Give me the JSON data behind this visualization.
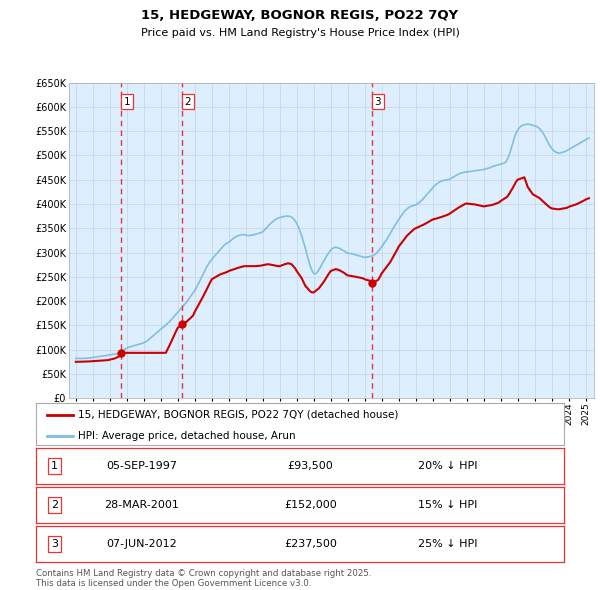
{
  "title": "15, HEDGEWAY, BOGNOR REGIS, PO22 7QY",
  "subtitle": "Price paid vs. HM Land Registry's House Price Index (HPI)",
  "legend_label_red": "15, HEDGEWAY, BOGNOR REGIS, PO22 7QY (detached house)",
  "legend_label_blue": "HPI: Average price, detached house, Arun",
  "footer1": "Contains HM Land Registry data © Crown copyright and database right 2025.",
  "footer2": "This data is licensed under the Open Government Licence v3.0.",
  "transactions": [
    {
      "label": "1",
      "date_num": 1997.67,
      "price": 93500,
      "hpi_pct": "20% ↓ HPI",
      "date_str": "05-SEP-1997"
    },
    {
      "label": "2",
      "date_num": 2001.24,
      "price": 152000,
      "hpi_pct": "15% ↓ HPI",
      "date_str": "28-MAR-2001"
    },
    {
      "label": "3",
      "date_num": 2012.43,
      "price": 237500,
      "hpi_pct": "25% ↓ HPI",
      "date_str": "07-JUN-2012"
    }
  ],
  "hpi_color": "#7fbfdf",
  "price_color": "#cc0000",
  "vline_color": "#ee3333",
  "grid_color": "#c8d8e8",
  "bg_color": "#ffffff",
  "plot_bg_color": "#ddeeff",
  "ylim": [
    0,
    650000
  ],
  "xlim_left": 1994.6,
  "xlim_right": 2025.5,
  "ytick_step": 50000,
  "hpi_data": [
    [
      1995.0,
      82000
    ],
    [
      1995.1,
      82200
    ],
    [
      1995.2,
      82100
    ],
    [
      1995.3,
      81900
    ],
    [
      1995.4,
      82000
    ],
    [
      1995.5,
      82300
    ],
    [
      1995.6,
      82500
    ],
    [
      1995.7,
      82700
    ],
    [
      1995.8,
      83000
    ],
    [
      1995.9,
      83200
    ],
    [
      1996.0,
      84000
    ],
    [
      1996.1,
      84500
    ],
    [
      1996.2,
      85000
    ],
    [
      1996.3,
      85500
    ],
    [
      1996.4,
      86000
    ],
    [
      1996.5,
      86500
    ],
    [
      1996.6,
      87000
    ],
    [
      1996.7,
      87500
    ],
    [
      1996.8,
      88000
    ],
    [
      1996.9,
      88500
    ],
    [
      1997.0,
      89500
    ],
    [
      1997.1,
      90000
    ],
    [
      1997.2,
      90500
    ],
    [
      1997.3,
      91000
    ],
    [
      1997.4,
      91500
    ],
    [
      1997.5,
      93000
    ],
    [
      1997.6,
      95000
    ],
    [
      1997.7,
      97000
    ],
    [
      1997.8,
      99000
    ],
    [
      1997.9,
      101000
    ],
    [
      1998.0,
      103000
    ],
    [
      1998.1,
      105000
    ],
    [
      1998.2,
      106000
    ],
    [
      1998.3,
      107000
    ],
    [
      1998.4,
      108000
    ],
    [
      1998.5,
      109000
    ],
    [
      1998.6,
      110000
    ],
    [
      1998.7,
      111000
    ],
    [
      1998.8,
      112000
    ],
    [
      1998.9,
      113000
    ],
    [
      1999.0,
      114000
    ],
    [
      1999.1,
      116000
    ],
    [
      1999.2,
      118000
    ],
    [
      1999.3,
      121000
    ],
    [
      1999.4,
      124000
    ],
    [
      1999.5,
      127000
    ],
    [
      1999.6,
      130000
    ],
    [
      1999.7,
      133000
    ],
    [
      1999.8,
      136000
    ],
    [
      1999.9,
      139000
    ],
    [
      2000.0,
      142000
    ],
    [
      2000.1,
      145000
    ],
    [
      2000.2,
      148000
    ],
    [
      2000.3,
      151000
    ],
    [
      2000.4,
      154000
    ],
    [
      2000.5,
      157000
    ],
    [
      2000.6,
      161000
    ],
    [
      2000.7,
      165000
    ],
    [
      2000.8,
      169000
    ],
    [
      2000.9,
      173000
    ],
    [
      2001.0,
      177000
    ],
    [
      2001.1,
      181000
    ],
    [
      2001.2,
      185000
    ],
    [
      2001.3,
      189000
    ],
    [
      2001.4,
      193000
    ],
    [
      2001.5,
      197000
    ],
    [
      2001.6,
      202000
    ],
    [
      2001.7,
      207000
    ],
    [
      2001.8,
      212000
    ],
    [
      2001.9,
      217000
    ],
    [
      2002.0,
      222000
    ],
    [
      2002.1,
      228000
    ],
    [
      2002.2,
      235000
    ],
    [
      2002.3,
      242000
    ],
    [
      2002.4,
      249000
    ],
    [
      2002.5,
      256000
    ],
    [
      2002.6,
      263000
    ],
    [
      2002.7,
      270000
    ],
    [
      2002.8,
      276000
    ],
    [
      2002.9,
      281000
    ],
    [
      2003.0,
      286000
    ],
    [
      2003.1,
      290000
    ],
    [
      2003.2,
      294000
    ],
    [
      2003.3,
      298000
    ],
    [
      2003.4,
      302000
    ],
    [
      2003.5,
      306000
    ],
    [
      2003.6,
      310000
    ],
    [
      2003.7,
      314000
    ],
    [
      2003.8,
      317000
    ],
    [
      2003.9,
      319000
    ],
    [
      2004.0,
      321000
    ],
    [
      2004.1,
      324000
    ],
    [
      2004.2,
      327000
    ],
    [
      2004.3,
      330000
    ],
    [
      2004.4,
      332000
    ],
    [
      2004.5,
      334000
    ],
    [
      2004.6,
      335000
    ],
    [
      2004.7,
      336000
    ],
    [
      2004.8,
      337000
    ],
    [
      2004.9,
      337000
    ],
    [
      2005.0,
      336000
    ],
    [
      2005.1,
      335000
    ],
    [
      2005.2,
      335000
    ],
    [
      2005.3,
      335500
    ],
    [
      2005.4,
      336000
    ],
    [
      2005.5,
      337000
    ],
    [
      2005.6,
      338000
    ],
    [
      2005.7,
      339000
    ],
    [
      2005.8,
      340000
    ],
    [
      2005.9,
      341000
    ],
    [
      2006.0,
      343000
    ],
    [
      2006.1,
      346000
    ],
    [
      2006.2,
      350000
    ],
    [
      2006.3,
      354000
    ],
    [
      2006.4,
      358000
    ],
    [
      2006.5,
      361000
    ],
    [
      2006.6,
      364000
    ],
    [
      2006.7,
      367000
    ],
    [
      2006.8,
      369000
    ],
    [
      2006.9,
      371000
    ],
    [
      2007.0,
      372000
    ],
    [
      2007.1,
      373000
    ],
    [
      2007.2,
      374000
    ],
    [
      2007.3,
      374500
    ],
    [
      2007.4,
      375000
    ],
    [
      2007.5,
      375000
    ],
    [
      2007.6,
      374500
    ],
    [
      2007.7,
      373000
    ],
    [
      2007.8,
      370000
    ],
    [
      2007.9,
      366000
    ],
    [
      2008.0,
      360000
    ],
    [
      2008.1,
      353000
    ],
    [
      2008.2,
      344000
    ],
    [
      2008.3,
      334000
    ],
    [
      2008.4,
      322000
    ],
    [
      2008.5,
      310000
    ],
    [
      2008.6,
      297000
    ],
    [
      2008.7,
      284000
    ],
    [
      2008.8,
      272000
    ],
    [
      2008.9,
      263000
    ],
    [
      2009.0,
      257000
    ],
    [
      2009.1,
      256000
    ],
    [
      2009.2,
      259000
    ],
    [
      2009.3,
      264000
    ],
    [
      2009.4,
      270000
    ],
    [
      2009.5,
      277000
    ],
    [
      2009.6,
      283000
    ],
    [
      2009.7,
      289000
    ],
    [
      2009.8,
      295000
    ],
    [
      2009.9,
      300000
    ],
    [
      2010.0,
      305000
    ],
    [
      2010.1,
      308000
    ],
    [
      2010.2,
      310000
    ],
    [
      2010.3,
      311000
    ],
    [
      2010.4,
      310000
    ],
    [
      2010.5,
      309000
    ],
    [
      2010.6,
      307000
    ],
    [
      2010.7,
      305000
    ],
    [
      2010.8,
      303000
    ],
    [
      2010.9,
      301000
    ],
    [
      2011.0,
      299000
    ],
    [
      2011.1,
      298000
    ],
    [
      2011.2,
      298000
    ],
    [
      2011.3,
      297000
    ],
    [
      2011.4,
      296000
    ],
    [
      2011.5,
      295000
    ],
    [
      2011.6,
      294000
    ],
    [
      2011.7,
      293000
    ],
    [
      2011.8,
      292000
    ],
    [
      2011.9,
      291000
    ],
    [
      2012.0,
      290000
    ],
    [
      2012.1,
      290500
    ],
    [
      2012.2,
      291000
    ],
    [
      2012.3,
      292000
    ],
    [
      2012.4,
      293000
    ],
    [
      2012.5,
      294000
    ],
    [
      2012.6,
      296000
    ],
    [
      2012.7,
      299000
    ],
    [
      2012.8,
      303000
    ],
    [
      2012.9,
      307000
    ],
    [
      2013.0,
      312000
    ],
    [
      2013.1,
      317000
    ],
    [
      2013.2,
      322000
    ],
    [
      2013.3,
      327000
    ],
    [
      2013.4,
      333000
    ],
    [
      2013.5,
      339000
    ],
    [
      2013.6,
      345000
    ],
    [
      2013.7,
      351000
    ],
    [
      2013.8,
      357000
    ],
    [
      2013.9,
      362000
    ],
    [
      2014.0,
      368000
    ],
    [
      2014.1,
      373000
    ],
    [
      2014.2,
      378000
    ],
    [
      2014.3,
      383000
    ],
    [
      2014.4,
      387000
    ],
    [
      2014.5,
      390000
    ],
    [
      2014.6,
      393000
    ],
    [
      2014.7,
      395000
    ],
    [
      2014.8,
      396000
    ],
    [
      2014.9,
      397000
    ],
    [
      2015.0,
      398000
    ],
    [
      2015.1,
      400000
    ],
    [
      2015.2,
      403000
    ],
    [
      2015.3,
      406000
    ],
    [
      2015.4,
      409000
    ],
    [
      2015.5,
      413000
    ],
    [
      2015.6,
      417000
    ],
    [
      2015.7,
      421000
    ],
    [
      2015.8,
      425000
    ],
    [
      2015.9,
      429000
    ],
    [
      2016.0,
      433000
    ],
    [
      2016.1,
      437000
    ],
    [
      2016.2,
      440000
    ],
    [
      2016.3,
      443000
    ],
    [
      2016.4,
      445000
    ],
    [
      2016.5,
      447000
    ],
    [
      2016.6,
      448000
    ],
    [
      2016.7,
      449000
    ],
    [
      2016.8,
      449500
    ],
    [
      2016.9,
      450000
    ],
    [
      2017.0,
      451000
    ],
    [
      2017.1,
      453000
    ],
    [
      2017.2,
      455000
    ],
    [
      2017.3,
      457000
    ],
    [
      2017.4,
      459000
    ],
    [
      2017.5,
      461000
    ],
    [
      2017.6,
      463000
    ],
    [
      2017.7,
      464000
    ],
    [
      2017.8,
      465000
    ],
    [
      2017.9,
      465500
    ],
    [
      2018.0,
      466000
    ],
    [
      2018.1,
      466500
    ],
    [
      2018.2,
      467000
    ],
    [
      2018.3,
      467500
    ],
    [
      2018.4,
      468000
    ],
    [
      2018.5,
      468500
    ],
    [
      2018.6,
      469000
    ],
    [
      2018.7,
      469500
    ],
    [
      2018.8,
      470000
    ],
    [
      2018.9,
      470500
    ],
    [
      2019.0,
      471000
    ],
    [
      2019.1,
      472000
    ],
    [
      2019.2,
      473000
    ],
    [
      2019.3,
      474000
    ],
    [
      2019.4,
      475000
    ],
    [
      2019.5,
      477000
    ],
    [
      2019.6,
      478000
    ],
    [
      2019.7,
      479000
    ],
    [
      2019.8,
      480000
    ],
    [
      2019.9,
      481000
    ],
    [
      2020.0,
      482000
    ],
    [
      2020.1,
      483000
    ],
    [
      2020.2,
      484000
    ],
    [
      2020.3,
      486000
    ],
    [
      2020.4,
      492000
    ],
    [
      2020.5,
      500000
    ],
    [
      2020.6,
      511000
    ],
    [
      2020.7,
      523000
    ],
    [
      2020.8,
      535000
    ],
    [
      2020.9,
      545000
    ],
    [
      2021.0,
      552000
    ],
    [
      2021.1,
      557000
    ],
    [
      2021.2,
      560000
    ],
    [
      2021.3,
      562000
    ],
    [
      2021.4,
      563000
    ],
    [
      2021.5,
      564000
    ],
    [
      2021.6,
      564500
    ],
    [
      2021.7,
      564000
    ],
    [
      2021.8,
      563000
    ],
    [
      2021.9,
      562000
    ],
    [
      2022.0,
      561000
    ],
    [
      2022.1,
      560000
    ],
    [
      2022.2,
      558000
    ],
    [
      2022.3,
      555000
    ],
    [
      2022.4,
      551000
    ],
    [
      2022.5,
      546000
    ],
    [
      2022.6,
      540000
    ],
    [
      2022.7,
      533000
    ],
    [
      2022.8,
      526000
    ],
    [
      2022.9,
      520000
    ],
    [
      2023.0,
      515000
    ],
    [
      2023.1,
      511000
    ],
    [
      2023.2,
      508000
    ],
    [
      2023.3,
      506000
    ],
    [
      2023.4,
      505000
    ],
    [
      2023.5,
      505000
    ],
    [
      2023.6,
      506000
    ],
    [
      2023.7,
      507000
    ],
    [
      2023.8,
      508000
    ],
    [
      2023.9,
      510000
    ],
    [
      2024.0,
      512000
    ],
    [
      2024.1,
      514000
    ],
    [
      2024.2,
      516000
    ],
    [
      2024.3,
      518000
    ],
    [
      2024.4,
      520000
    ],
    [
      2024.5,
      522000
    ],
    [
      2024.6,
      524000
    ],
    [
      2024.7,
      526000
    ],
    [
      2024.8,
      528000
    ],
    [
      2024.9,
      530000
    ],
    [
      2025.0,
      532000
    ],
    [
      2025.1,
      534000
    ],
    [
      2025.2,
      536000
    ]
  ],
  "price_data": [
    [
      1995.0,
      75000
    ],
    [
      1995.5,
      75500
    ],
    [
      1995.9,
      76000
    ],
    [
      1996.0,
      76500
    ],
    [
      1996.5,
      77500
    ],
    [
      1996.9,
      78500
    ],
    [
      1997.0,
      79500
    ],
    [
      1997.3,
      82000
    ],
    [
      1997.6,
      87000
    ],
    [
      1997.67,
      93500
    ],
    [
      1998.0,
      93500
    ],
    [
      1999.0,
      93500
    ],
    [
      2000.0,
      93500
    ],
    [
      2000.3,
      93500
    ],
    [
      2000.6,
      115000
    ],
    [
      2000.9,
      138000
    ],
    [
      2001.0,
      145000
    ],
    [
      2001.24,
      152000
    ],
    [
      2001.5,
      157000
    ],
    [
      2001.9,
      170000
    ],
    [
      2002.0,
      178000
    ],
    [
      2002.5,
      210000
    ],
    [
      2002.9,
      238000
    ],
    [
      2003.0,
      245000
    ],
    [
      2003.5,
      255000
    ],
    [
      2003.9,
      260000
    ],
    [
      2004.0,
      262000
    ],
    [
      2004.5,
      268000
    ],
    [
      2004.9,
      272000
    ],
    [
      2005.0,
      272000
    ],
    [
      2005.5,
      272000
    ],
    [
      2005.9,
      273000
    ],
    [
      2006.0,
      274000
    ],
    [
      2006.3,
      276000
    ],
    [
      2006.5,
      275000
    ],
    [
      2006.9,
      272000
    ],
    [
      2007.0,
      272000
    ],
    [
      2007.3,
      276000
    ],
    [
      2007.5,
      278000
    ],
    [
      2007.7,
      276000
    ],
    [
      2007.9,
      268000
    ],
    [
      2008.0,
      262000
    ],
    [
      2008.3,
      247000
    ],
    [
      2008.5,
      232000
    ],
    [
      2008.8,
      220000
    ],
    [
      2008.9,
      218000
    ],
    [
      2009.0,
      218000
    ],
    [
      2009.3,
      226000
    ],
    [
      2009.6,
      240000
    ],
    [
      2009.9,
      257000
    ],
    [
      2010.0,
      262000
    ],
    [
      2010.3,
      266000
    ],
    [
      2010.5,
      264000
    ],
    [
      2010.8,
      258000
    ],
    [
      2010.9,
      255000
    ],
    [
      2011.0,
      253000
    ],
    [
      2011.5,
      250000
    ],
    [
      2011.9,
      247000
    ],
    [
      2012.0,
      245000
    ],
    [
      2012.3,
      242000
    ],
    [
      2012.43,
      237500
    ],
    [
      2012.5,
      237500
    ],
    [
      2012.8,
      244000
    ],
    [
      2012.9,
      250000
    ],
    [
      2013.0,
      257000
    ],
    [
      2013.5,
      280000
    ],
    [
      2013.9,
      305000
    ],
    [
      2014.0,
      312000
    ],
    [
      2014.5,
      335000
    ],
    [
      2014.9,
      348000
    ],
    [
      2015.0,
      350000
    ],
    [
      2015.5,
      358000
    ],
    [
      2015.9,
      366000
    ],
    [
      2016.0,
      368000
    ],
    [
      2016.5,
      373000
    ],
    [
      2016.9,
      378000
    ],
    [
      2017.0,
      380000
    ],
    [
      2017.5,
      392000
    ],
    [
      2017.9,
      400000
    ],
    [
      2018.0,
      401000
    ],
    [
      2018.5,
      399000
    ],
    [
      2018.9,
      396000
    ],
    [
      2019.0,
      395000
    ],
    [
      2019.5,
      398000
    ],
    [
      2019.9,
      403000
    ],
    [
      2020.0,
      406000
    ],
    [
      2020.4,
      415000
    ],
    [
      2020.7,
      432000
    ],
    [
      2020.9,
      445000
    ],
    [
      2021.0,
      450000
    ],
    [
      2021.4,
      455000
    ],
    [
      2021.6,
      435000
    ],
    [
      2021.9,
      420000
    ],
    [
      2022.0,
      418000
    ],
    [
      2022.3,
      412000
    ],
    [
      2022.6,
      402000
    ],
    [
      2022.9,
      393000
    ],
    [
      2023.0,
      391000
    ],
    [
      2023.4,
      389000
    ],
    [
      2023.9,
      392000
    ],
    [
      2024.0,
      394000
    ],
    [
      2024.5,
      400000
    ],
    [
      2024.9,
      407000
    ],
    [
      2025.0,
      409000
    ],
    [
      2025.2,
      412000
    ]
  ]
}
